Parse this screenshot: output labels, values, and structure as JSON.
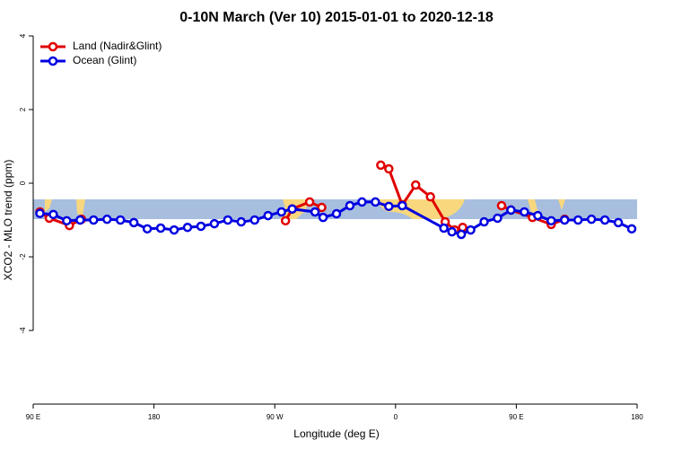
{
  "chart_data": {
    "type": "line",
    "title": "0-10N March (Ver 10)   2015-01-01 to 2020-12-18",
    "x_label": "Longitude (deg E)",
    "y_label": "XCO2 - MLO trend (ppm)",
    "xlim": [
      90,
      540
    ],
    "ylim": [
      -6,
      4
    ],
    "xticks": [
      {
        "value": 90,
        "label": "90 E"
      },
      {
        "value": 180,
        "label": "180"
      },
      {
        "value": 270,
        "label": "90 W"
      },
      {
        "value": 360,
        "label": "0"
      },
      {
        "value": 450,
        "label": "90 E"
      },
      {
        "value": 540,
        "label": "180"
      }
    ],
    "yticks": [
      4,
      2,
      0,
      -2,
      -4
    ],
    "legend": "top-left",
    "series": [
      {
        "name": "Land (Nadir&Glint)",
        "color": "#e00000",
        "x": [
          95,
          102,
          117,
          126,
          null,
          278,
          283,
          296,
          305,
          null,
          349,
          355,
          365,
          375,
          386,
          397,
          404,
          410,
          null,
          439,
          446,
          462,
          476,
          486
        ],
        "values": [
          -0.78,
          -0.95,
          -1.15,
          -0.98,
          null,
          -1.02,
          -0.7,
          -0.51,
          -0.66,
          null,
          0.49,
          0.39,
          -0.59,
          -0.05,
          -0.37,
          -1.05,
          -1.27,
          -1.2,
          null,
          -0.61,
          -0.73,
          -0.93,
          -1.12,
          -0.98
        ]
      },
      {
        "name": "Ocean (Glint)",
        "color": "#0000e0",
        "x": [
          95,
          105,
          115,
          125,
          135,
          145,
          155,
          165,
          175,
          185,
          195,
          205,
          215,
          225,
          235,
          245,
          255,
          265,
          275,
          283,
          300,
          306,
          316,
          326,
          335,
          345,
          355,
          365,
          396,
          402,
          409,
          416,
          426,
          436,
          446,
          456,
          466,
          476,
          486,
          496,
          506,
          516,
          526,
          536
        ],
        "values": [
          -0.82,
          -0.85,
          -1.02,
          -1.0,
          -1.0,
          -0.98,
          -1.0,
          -1.07,
          -1.24,
          -1.22,
          -1.27,
          -1.2,
          -1.17,
          -1.1,
          -1.0,
          -1.05,
          -1.0,
          -0.88,
          -0.78,
          -0.7,
          -0.78,
          -0.93,
          -0.83,
          -0.61,
          -0.51,
          -0.51,
          -0.63,
          -0.61,
          -1.22,
          -1.32,
          -1.39,
          -1.27,
          -1.05,
          -0.95,
          -0.73,
          -0.78,
          -0.88,
          -1.02,
          -1.0,
          -1.0,
          -0.98,
          -1.0,
          -1.07,
          -1.24
        ]
      }
    ]
  }
}
